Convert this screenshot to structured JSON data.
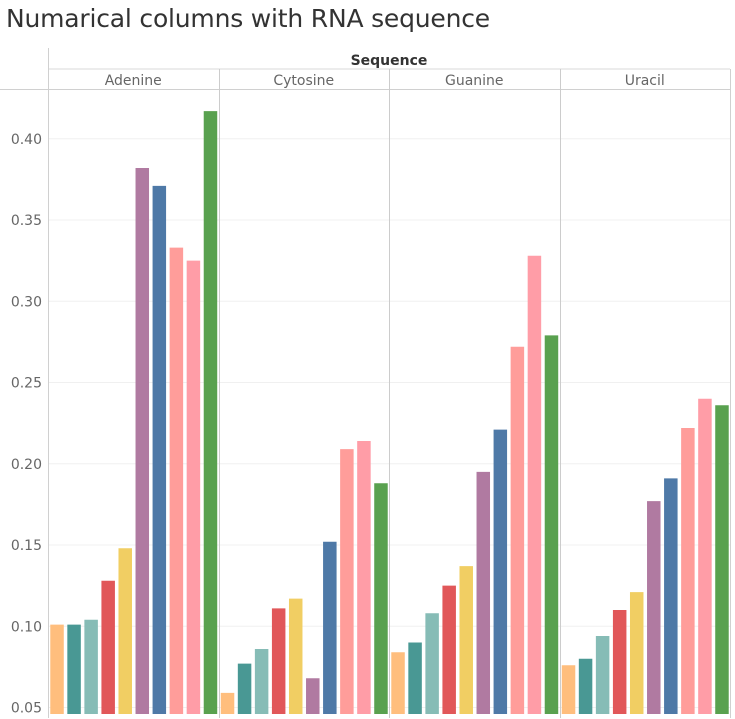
{
  "title": "Numarical columns with RNA sequence",
  "colors": [
    "#FFBE7D",
    "#499894",
    "#86BCB6",
    "#E15759",
    "#F1CE63",
    "#B07AA1",
    "#4E79A7",
    "#FF9D9A",
    "#FF9DA7",
    "#59A14F"
  ],
  "chart_data": {
    "type": "bar",
    "header": "Sequence",
    "categories": [
      "Adenine",
      "Cytosine",
      "Guanine",
      "Uracil"
    ],
    "bars_per_category": 10,
    "series_values": [
      [
        0.101,
        0.101,
        0.104,
        0.128,
        0.148,
        0.382,
        0.371,
        0.333,
        0.325,
        0.417
      ],
      [
        0.059,
        0.077,
        0.086,
        0.111,
        0.117,
        0.068,
        0.152,
        0.209,
        0.214,
        0.188
      ],
      [
        0.084,
        0.09,
        0.108,
        0.125,
        0.137,
        0.195,
        0.221,
        0.272,
        0.328,
        0.279
      ],
      [
        0.076,
        0.08,
        0.094,
        0.11,
        0.121,
        0.177,
        0.191,
        0.222,
        0.24,
        0.236
      ]
    ],
    "y_ticks": [
      "0.05",
      "0.10",
      "0.15",
      "0.20",
      "0.25",
      "0.30",
      "0.35",
      "0.40"
    ],
    "y_tick_values": [
      0.05,
      0.1,
      0.15,
      0.2,
      0.25,
      0.3,
      0.35,
      0.4
    ],
    "ylim": [
      0.046,
      0.43
    ],
    "grid": true,
    "legend": "none"
  }
}
